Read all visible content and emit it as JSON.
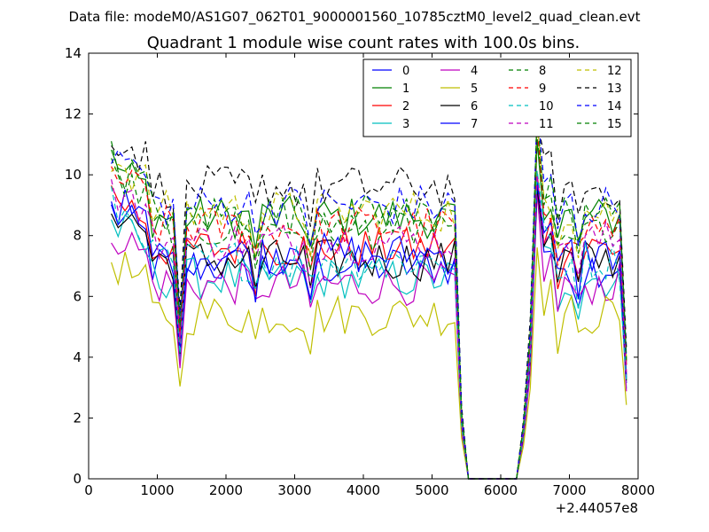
{
  "chart_data": {
    "type": "line",
    "suptitle": "Data file: modeM0/AS1G07_062T01_9000001560_10785cztM0_level2_quad_clean.evt",
    "title": "Quadrant 1 module wise count rates with 100.0s bins.",
    "xlabel": "",
    "ylabel": "",
    "x_offset_label": "+2.44057e8",
    "xlim": [
      0,
      8000
    ],
    "ylim": [
      0,
      14
    ],
    "x_ticks": [
      0,
      1000,
      2000,
      3000,
      4000,
      5000,
      6000,
      7000,
      8000
    ],
    "y_ticks": [
      0,
      2,
      4,
      6,
      8,
      10,
      12,
      14
    ],
    "grid": false,
    "legend_position": "top-right",
    "x_range_segments": [
      [
        330,
        5330
      ],
      [
        5330,
        6330
      ],
      [
        6330,
        7830
      ]
    ],
    "dips": [
      1330,
      2430,
      3230,
      6830,
      7130
    ],
    "series": [
      {
        "name": "0",
        "color": "#0000ff",
        "style": "solid",
        "base": 7.0
      },
      {
        "name": "1",
        "color": "#008000",
        "style": "solid",
        "base": 8.6
      },
      {
        "name": "2",
        "color": "#ff0000",
        "style": "solid",
        "base": 7.6
      },
      {
        "name": "3",
        "color": "#00bfbf",
        "style": "solid",
        "base": 6.6
      },
      {
        "name": "4",
        "color": "#bf00bf",
        "style": "solid",
        "base": 6.4
      },
      {
        "name": "5",
        "color": "#bfbf00",
        "style": "solid",
        "base": 5.4
      },
      {
        "name": "6",
        "color": "#000000",
        "style": "solid",
        "base": 7.2
      },
      {
        "name": "7",
        "color": "#0000ff",
        "style": "solid",
        "base": 7.4
      },
      {
        "name": "8",
        "color": "#008000",
        "style": "dashed",
        "base": 8.2
      },
      {
        "name": "9",
        "color": "#ff0000",
        "style": "dashed",
        "base": 8.3
      },
      {
        "name": "10",
        "color": "#00bfbf",
        "style": "dashed",
        "base": 7.2
      },
      {
        "name": "11",
        "color": "#bf00bf",
        "style": "dashed",
        "base": 7.8
      },
      {
        "name": "12",
        "color": "#bfbf00",
        "style": "dashed",
        "base": 8.8
      },
      {
        "name": "13",
        "color": "#000000",
        "style": "dashed",
        "base": 9.6
      },
      {
        "name": "14",
        "color": "#0000ff",
        "style": "dashed",
        "base": 9.0
      },
      {
        "name": "15",
        "color": "#008000",
        "style": "dashed",
        "base": 8.7
      }
    ]
  }
}
